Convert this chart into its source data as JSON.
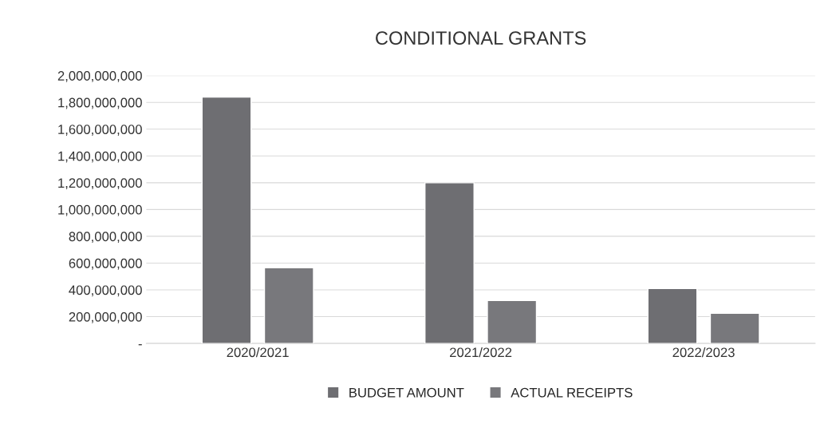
{
  "chart_data": {
    "type": "bar",
    "title": "CONDITIONAL GRANTS",
    "categories": [
      "2020/2021",
      "2021/2022",
      "2022/2023"
    ],
    "series": [
      {
        "name": "BUDGET AMOUNT",
        "color": "#6e6e72",
        "values": [
          1840000000,
          1200000000,
          410000000
        ]
      },
      {
        "name": "ACTUAL RECEIPTS",
        "color": "#78787c",
        "values": [
          565000000,
          320000000,
          225000000
        ]
      }
    ],
    "ylim": [
      0,
      2000000000
    ],
    "yticks": [
      {
        "value": 0,
        "label": "-"
      },
      {
        "value": 200000000,
        "label": "200,000,000"
      },
      {
        "value": 400000000,
        "label": "400,000,000"
      },
      {
        "value": 600000000,
        "label": "600,000,000"
      },
      {
        "value": 800000000,
        "label": "800,000,000"
      },
      {
        "value": 1000000000,
        "label": "1,000,000,000"
      },
      {
        "value": 1200000000,
        "label": "1,200,000,000"
      },
      {
        "value": 1400000000,
        "label": "1,400,000,000"
      },
      {
        "value": 1600000000,
        "label": "1,600,000,000"
      },
      {
        "value": 1800000000,
        "label": "1,800,000,000"
      },
      {
        "value": 2000000000,
        "label": "2,000,000,000"
      }
    ],
    "grid": "y",
    "legend": "bottom"
  }
}
